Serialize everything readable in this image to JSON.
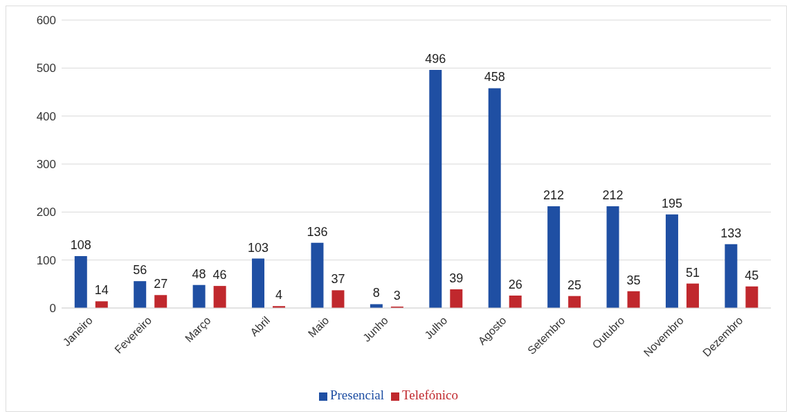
{
  "chart_data": {
    "type": "bar",
    "categories": [
      "Janeiro",
      "Fevereiro",
      "Março",
      "Abril",
      "Maio",
      "Junho",
      "Julho",
      "Agosto",
      "Setembro",
      "Outubro",
      "Novembro",
      "Dezembro"
    ],
    "series": [
      {
        "name": "Presencial",
        "color": "#1f4fa3",
        "values": [
          108,
          56,
          48,
          103,
          136,
          8,
          496,
          458,
          212,
          212,
          195,
          133
        ]
      },
      {
        "name": "Telefónico",
        "color": "#c0282d",
        "values": [
          14,
          27,
          46,
          4,
          37,
          3,
          39,
          26,
          25,
          35,
          51,
          45
        ]
      }
    ],
    "ylim": [
      0,
      600
    ],
    "yticks": [
      0,
      100,
      200,
      300,
      400,
      500,
      600
    ],
    "grid": "y",
    "legend": "bottom",
    "data_labels": true
  }
}
